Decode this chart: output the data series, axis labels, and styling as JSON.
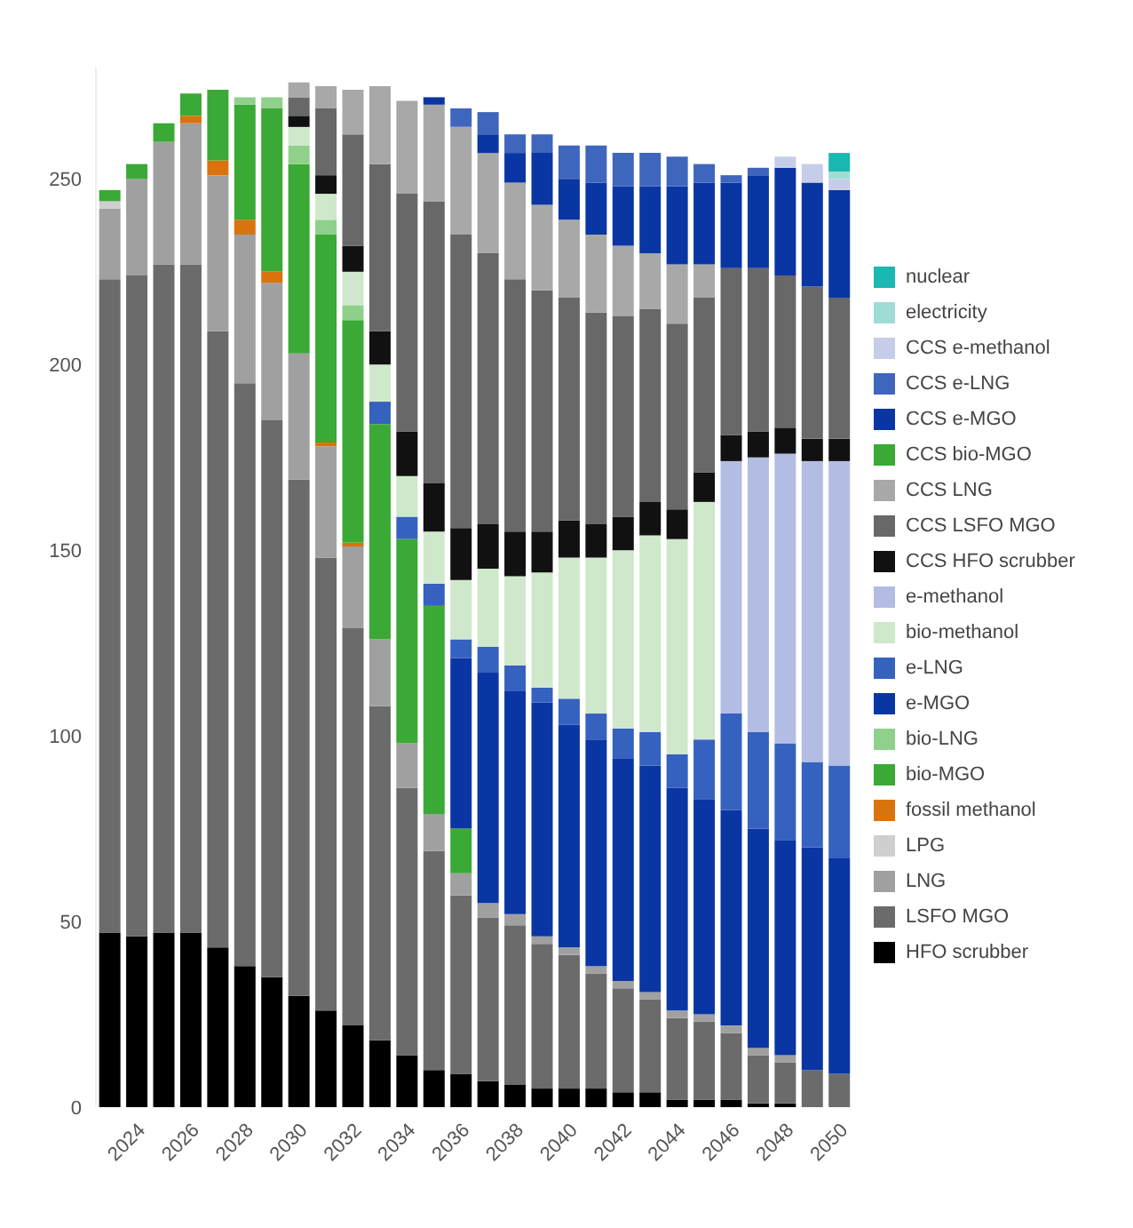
{
  "chart_data": {
    "type": "bar",
    "stacked": true,
    "categories": [
      null,
      "2024",
      null,
      "2026",
      null,
      "2028",
      null,
      "2030",
      null,
      "2032",
      null,
      "2034",
      null,
      "2036",
      null,
      "2038",
      null,
      "2040",
      null,
      "2042",
      null,
      "2044",
      null,
      "2046",
      null,
      "2048",
      null,
      "2050"
    ],
    "ylim": [
      0,
      280
    ],
    "yticks": [
      0,
      50,
      100,
      150,
      200,
      250
    ],
    "grid": false,
    "legend": "right",
    "series": [
      {
        "name": "HFO scrubber",
        "color": "#000000",
        "values": [
          47,
          46,
          47,
          47,
          43,
          38,
          35,
          30,
          26,
          22,
          18,
          14,
          10,
          9,
          7,
          6,
          5,
          5,
          5,
          4,
          4,
          2,
          2,
          2,
          1,
          1,
          0,
          0
        ]
      },
      {
        "name": "LSFO MGO",
        "color": "#6b6b6b",
        "values": [
          176,
          178,
          180,
          180,
          166,
          157,
          150,
          139,
          122,
          107,
          90,
          72,
          59,
          48,
          44,
          43,
          39,
          36,
          31,
          28,
          25,
          22,
          21,
          18,
          13,
          11,
          10,
          9
        ]
      },
      {
        "name": "LNG",
        "color": "#a0a0a0",
        "values": [
          19,
          26,
          33,
          38,
          42,
          40,
          37,
          34,
          30,
          22,
          18,
          12,
          10,
          6,
          4,
          3,
          2,
          2,
          2,
          2,
          2,
          2,
          2,
          2,
          2,
          2,
          0,
          0
        ]
      },
      {
        "name": "LPG",
        "color": "#cfcfcf",
        "values": [
          2,
          0,
          0,
          0,
          0,
          0,
          0,
          0,
          0,
          0,
          0,
          0,
          0,
          0,
          0,
          0,
          0,
          0,
          0,
          0,
          0,
          0,
          0,
          0,
          0,
          0,
          0,
          0
        ]
      },
      {
        "name": "fossil methanol",
        "color": "#d9730d",
        "values": [
          0,
          0,
          0,
          2,
          4,
          4,
          3,
          0,
          1,
          1,
          0,
          0,
          0,
          0,
          0,
          0,
          0,
          0,
          0,
          0,
          0,
          0,
          0,
          0,
          0,
          0,
          0,
          0
        ]
      },
      {
        "name": "bio-MGO",
        "color": "#3aa935",
        "values": [
          3,
          4,
          5,
          6,
          19,
          31,
          44,
          51,
          56,
          60,
          58,
          55,
          56,
          12,
          0,
          0,
          0,
          0,
          0,
          0,
          0,
          0,
          0,
          0,
          0,
          0,
          0,
          0
        ]
      },
      {
        "name": "bio-LNG",
        "color": "#8fd18b",
        "values": [
          0,
          0,
          0,
          0,
          0,
          2,
          3,
          5,
          4,
          4,
          0,
          0,
          0,
          0,
          0,
          0,
          0,
          0,
          0,
          0,
          0,
          0,
          0,
          0,
          0,
          0,
          0,
          0
        ]
      },
      {
        "name": "e-MGO",
        "color": "#0a36a3",
        "values": [
          0,
          0,
          0,
          0,
          0,
          0,
          0,
          0,
          0,
          0,
          0,
          0,
          0,
          46,
          62,
          60,
          63,
          60,
          61,
          60,
          61,
          60,
          58,
          58,
          59,
          58,
          60,
          58
        ]
      },
      {
        "name": "e-LNG",
        "color": "#3562bf",
        "values": [
          0,
          0,
          0,
          0,
          0,
          0,
          0,
          0,
          0,
          0,
          6,
          6,
          6,
          5,
          7,
          7,
          4,
          7,
          7,
          8,
          9,
          9,
          16,
          26,
          26,
          26,
          23,
          25
        ]
      },
      {
        "name": "bio-methanol",
        "color": "#cfe8cb",
        "values": [
          0,
          0,
          0,
          0,
          0,
          0,
          0,
          5,
          7,
          9,
          10,
          11,
          14,
          16,
          21,
          24,
          31,
          38,
          42,
          48,
          53,
          58,
          64,
          0,
          0,
          0,
          0,
          0
        ]
      },
      {
        "name": "e-methanol",
        "color": "#b3bde3",
        "values": [
          0,
          0,
          0,
          0,
          0,
          0,
          0,
          0,
          0,
          0,
          0,
          0,
          0,
          0,
          0,
          0,
          0,
          0,
          0,
          0,
          0,
          0,
          0,
          68,
          74,
          78,
          81,
          82
        ]
      },
      {
        "name": "CCS HFO scrubber",
        "color": "#111111",
        "values": [
          0,
          0,
          0,
          0,
          0,
          0,
          0,
          3,
          5,
          7,
          9,
          12,
          13,
          14,
          12,
          12,
          11,
          10,
          9,
          9,
          9,
          8,
          8,
          7,
          7,
          7,
          6,
          6
        ]
      },
      {
        "name": "CCS LSFO MGO",
        "color": "#686868",
        "values": [
          0,
          0,
          0,
          0,
          0,
          0,
          0,
          5,
          18,
          30,
          45,
          64,
          76,
          79,
          73,
          68,
          65,
          60,
          57,
          54,
          52,
          50,
          47,
          45,
          44,
          41,
          41,
          38
        ]
      },
      {
        "name": "CCS LNG",
        "color": "#a8a8a8",
        "values": [
          0,
          0,
          0,
          0,
          0,
          0,
          0,
          4,
          6,
          12,
          21,
          25,
          26,
          29,
          27,
          26,
          23,
          21,
          21,
          19,
          15,
          16,
          9,
          0,
          0,
          0,
          0,
          0
        ]
      },
      {
        "name": "CCS bio-MGO",
        "color": "#3aa935",
        "values": [
          0,
          0,
          0,
          0,
          0,
          0,
          0,
          0,
          0,
          0,
          0,
          0,
          0,
          0,
          0,
          0,
          0,
          0,
          0,
          0,
          0,
          0,
          0,
          0,
          0,
          0,
          0,
          0
        ]
      },
      {
        "name": "CCS e-MGO",
        "color": "#0a36a3",
        "values": [
          0,
          0,
          0,
          0,
          0,
          0,
          0,
          0,
          0,
          0,
          0,
          0,
          2,
          0,
          5,
          8,
          14,
          11,
          14,
          16,
          18,
          21,
          22,
          23,
          25,
          29,
          28,
          29
        ]
      },
      {
        "name": "CCS e-LNG",
        "color": "#3e66bd",
        "values": [
          0,
          0,
          0,
          0,
          0,
          0,
          0,
          0,
          0,
          0,
          0,
          0,
          0,
          5,
          6,
          5,
          5,
          9,
          10,
          9,
          9,
          8,
          5,
          2,
          2,
          0,
          0,
          0
        ]
      },
      {
        "name": "CCS e-methanol",
        "color": "#c5cde8",
        "values": [
          0,
          0,
          0,
          0,
          0,
          0,
          0,
          0,
          0,
          0,
          0,
          0,
          0,
          0,
          0,
          0,
          0,
          0,
          0,
          0,
          0,
          0,
          0,
          0,
          0,
          3,
          5,
          3
        ]
      },
      {
        "name": "electricity",
        "color": "#9fdcd6",
        "values": [
          0,
          0,
          0,
          0,
          0,
          0,
          0,
          0,
          0,
          0,
          0,
          0,
          0,
          0,
          0,
          0,
          0,
          0,
          0,
          0,
          0,
          0,
          0,
          0,
          0,
          0,
          0,
          2
        ]
      },
      {
        "name": "nuclear",
        "color": "#19b8b0",
        "values": [
          0,
          0,
          0,
          0,
          0,
          0,
          0,
          0,
          0,
          0,
          0,
          0,
          0,
          0,
          0,
          0,
          0,
          0,
          0,
          0,
          0,
          0,
          0,
          0,
          0,
          0,
          0,
          5
        ]
      }
    ]
  }
}
